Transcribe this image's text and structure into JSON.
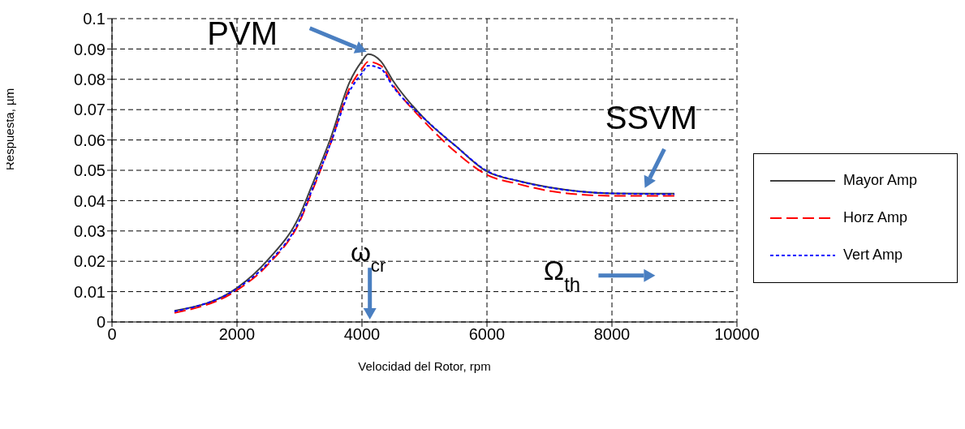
{
  "chart_data": {
    "type": "line",
    "xlabel": "Velocidad del Rotor, rpm",
    "ylabel": "Respuesta, µm",
    "xlim": [
      0,
      10000
    ],
    "xticks": [
      0,
      2000,
      4000,
      6000,
      8000,
      10000
    ],
    "ylim": [
      0,
      0.1
    ],
    "yticks": [
      0,
      0.01,
      0.02,
      0.03,
      0.04,
      0.05,
      0.06,
      0.07,
      0.08,
      0.09,
      0.1
    ],
    "grid": true,
    "legend": "right",
    "marker": "none",
    "x": [
      1000,
      2000,
      2500,
      3000,
      3200,
      3500,
      3800,
      4000,
      4100,
      4300,
      4500,
      5000,
      5500,
      6000,
      6500,
      7000,
      8000,
      9000
    ],
    "series": [
      {
        "name": "Mayor Amp",
        "color": "#404040",
        "line_style": "solid",
        "values": [
          0.0037,
          0.0112,
          0.0206,
          0.035,
          0.045,
          0.0607,
          0.079,
          0.086,
          0.0883,
          0.086,
          0.0794,
          0.067,
          0.058,
          0.0496,
          0.0465,
          0.0444,
          0.0424,
          0.0423
        ]
      },
      {
        "name": "Horz Amp",
        "color": "#ff0000",
        "line_style": "dashed",
        "values": [
          0.003,
          0.0105,
          0.019,
          0.033,
          0.043,
          0.059,
          0.077,
          0.0835,
          0.0858,
          0.0845,
          0.078,
          0.066,
          0.056,
          0.0485,
          0.0455,
          0.0432,
          0.0416,
          0.0416
        ]
      },
      {
        "name": "Vert Amp",
        "color": "#0000ff",
        "line_style": "dotted",
        "values": [
          0.0035,
          0.011,
          0.0195,
          0.0335,
          0.0435,
          0.059,
          0.076,
          0.082,
          0.0845,
          0.0835,
          0.0775,
          0.067,
          0.058,
          0.0498,
          0.0465,
          0.0443,
          0.0424,
          0.0421
        ]
      }
    ],
    "annotations": [
      {
        "text": "PVM",
        "x": 4100,
        "y": 0.0883
      },
      {
        "text": "SSVM",
        "x": 8500,
        "y": 0.0423
      },
      "ω$_{cr}$",
      "Ω$_{th}$"
    ]
  }
}
